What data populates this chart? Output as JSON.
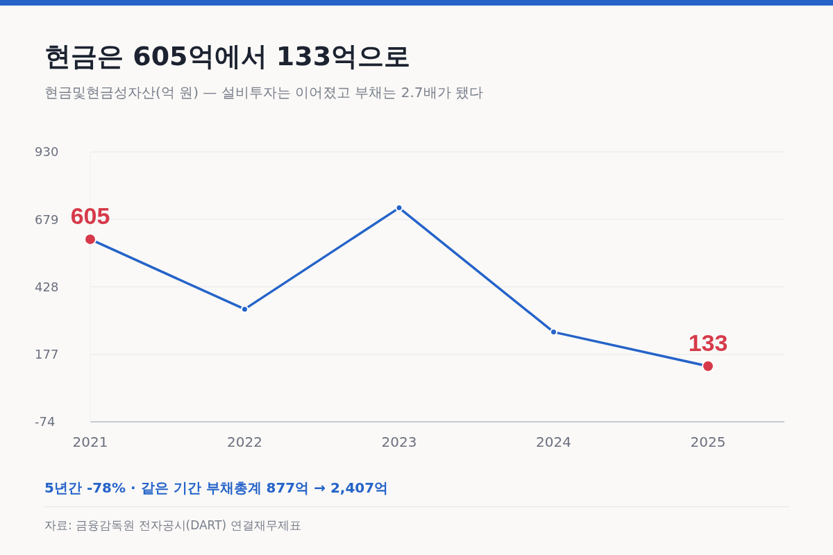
{
  "chart_data": {
    "type": "line",
    "title": "현금은 605억에서 133억으로",
    "subtitle": "현금및현금성자산(억 원) — 설비투자는 이어졌고 부채는 2.7배가 됐다",
    "categories": [
      "2021",
      "2022",
      "2023",
      "2024",
      "2025"
    ],
    "series": [
      {
        "color": "#2563c9",
        "values": [
          605,
          345,
          722,
          260,
          133
        ],
        "colors": [
          "#d63a4a",
          "#2563c9",
          "#2563c9",
          "#2563c9",
          "#d63a4a"
        ],
        "value_labels": [
          "605",
          null,
          null,
          null,
          "133"
        ]
      }
    ],
    "ylim": [
      -74,
      930
    ],
    "yticks": [
      -74,
      177,
      428,
      679,
      930
    ],
    "grid": "y",
    "marker": "circle",
    "line_style": "solid",
    "annotations": [
      "5년간 -78% · 같은 기간 부채총계 877억 → 2,407억",
      "자료: 금융감독원 전자공시(DART) 연결재무제표"
    ]
  }
}
